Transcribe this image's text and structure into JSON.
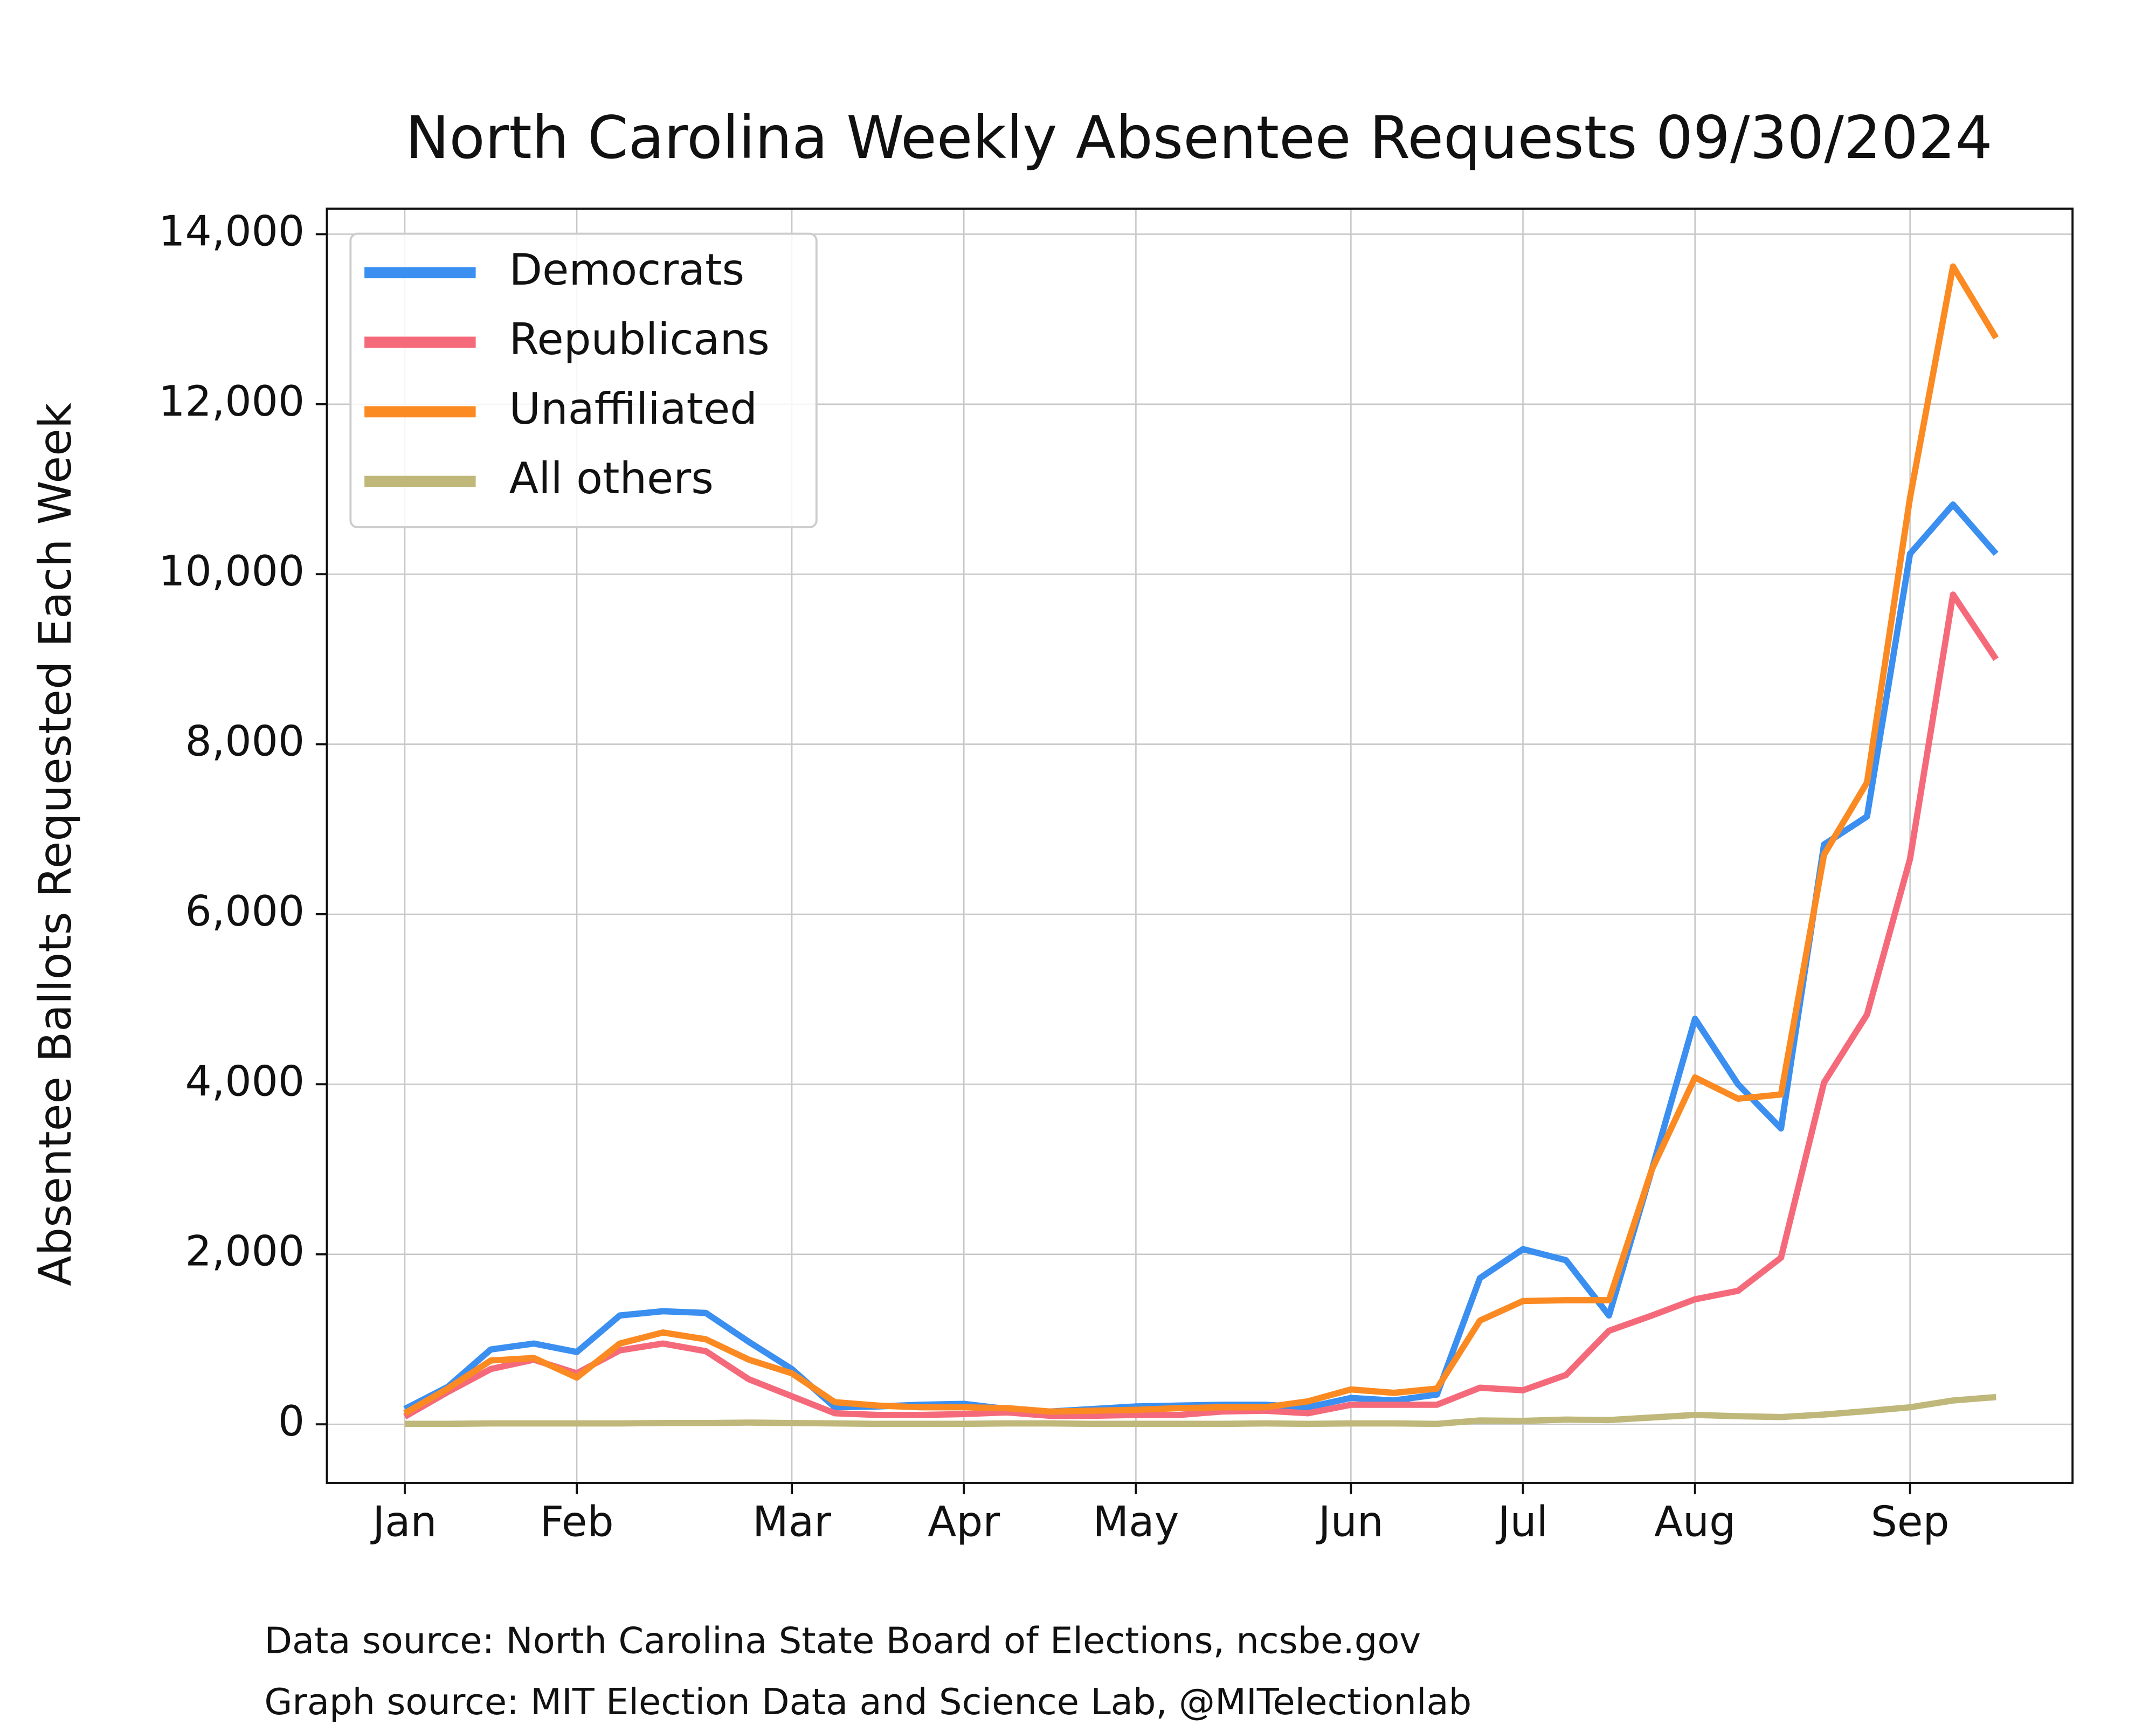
{
  "chart_data": {
    "type": "line",
    "title": "North Carolina Weekly Absentee Requests 09/30/2024",
    "y_label": "Absentee Ballots Requested Each Week",
    "annotations": [
      "Data source: North Carolina State Board of Elections, ncsbe.gov",
      "Graph source: MIT Election Data and Science Lab, @MITelectionlab"
    ],
    "categories": [
      "Jan",
      null,
      null,
      null,
      "Feb",
      null,
      null,
      null,
      null,
      "Mar",
      null,
      null,
      null,
      "Apr",
      null,
      null,
      null,
      "May",
      null,
      null,
      null,
      null,
      "Jun",
      null,
      null,
      null,
      "Jul",
      null,
      null,
      null,
      "Aug",
      null,
      null,
      null,
      null,
      "Sep",
      null,
      null
    ],
    "series": [
      {
        "name": "Democrats",
        "color": "#3a8ff0",
        "values": [
          180,
          440,
          880,
          950,
          850,
          1280,
          1330,
          1310,
          970,
          650,
          200,
          210,
          230,
          240,
          180,
          150,
          180,
          210,
          220,
          230,
          230,
          200,
          310,
          280,
          350,
          1720,
          2060,
          1930,
          1280,
          3000,
          4770,
          4000,
          3480,
          6820,
          7150,
          10240,
          10820,
          10240
        ]
      },
      {
        "name": "Republicans",
        "color": "#f56a7a",
        "values": [
          90,
          380,
          650,
          760,
          600,
          870,
          950,
          860,
          530,
          330,
          130,
          110,
          110,
          120,
          140,
          100,
          100,
          110,
          110,
          150,
          160,
          130,
          230,
          230,
          230,
          430,
          400,
          580,
          1100,
          1280,
          1470,
          1570,
          1960,
          4020,
          4820,
          6650,
          9760,
          9000
        ]
      },
      {
        "name": "Unaffiliated",
        "color": "#fb8a22",
        "values": [
          130,
          420,
          750,
          780,
          550,
          950,
          1080,
          1000,
          760,
          600,
          260,
          220,
          200,
          200,
          190,
          150,
          160,
          170,
          190,
          200,
          200,
          270,
          410,
          370,
          420,
          1220,
          1450,
          1460,
          1460,
          3000,
          4080,
          3830,
          3880,
          6700,
          7550,
          10900,
          13620,
          12780
        ]
      },
      {
        "name": "All others",
        "color": "#bfb87a",
        "values": [
          5,
          5,
          10,
          10,
          10,
          10,
          15,
          15,
          20,
          15,
          10,
          5,
          5,
          5,
          10,
          10,
          5,
          5,
          5,
          5,
          10,
          5,
          10,
          10,
          5,
          45,
          40,
          55,
          50,
          80,
          110,
          95,
          85,
          115,
          155,
          200,
          280,
          320
        ]
      }
    ],
    "ylim": [
      -690,
      14300
    ],
    "yticks": [
      0,
      {
        "value": 2000,
        "label": "2,000"
      },
      {
        "value": 4000,
        "label": "4,000"
      },
      {
        "value": 6000,
        "label": "6,000"
      },
      {
        "value": 8000,
        "label": "8,000"
      },
      {
        "value": 10000,
        "label": "10,000"
      },
      {
        "value": 12000,
        "label": "12,000"
      },
      {
        "value": 14000,
        "label": "14,000"
      }
    ],
    "grid": true,
    "legend": "upper-left"
  }
}
